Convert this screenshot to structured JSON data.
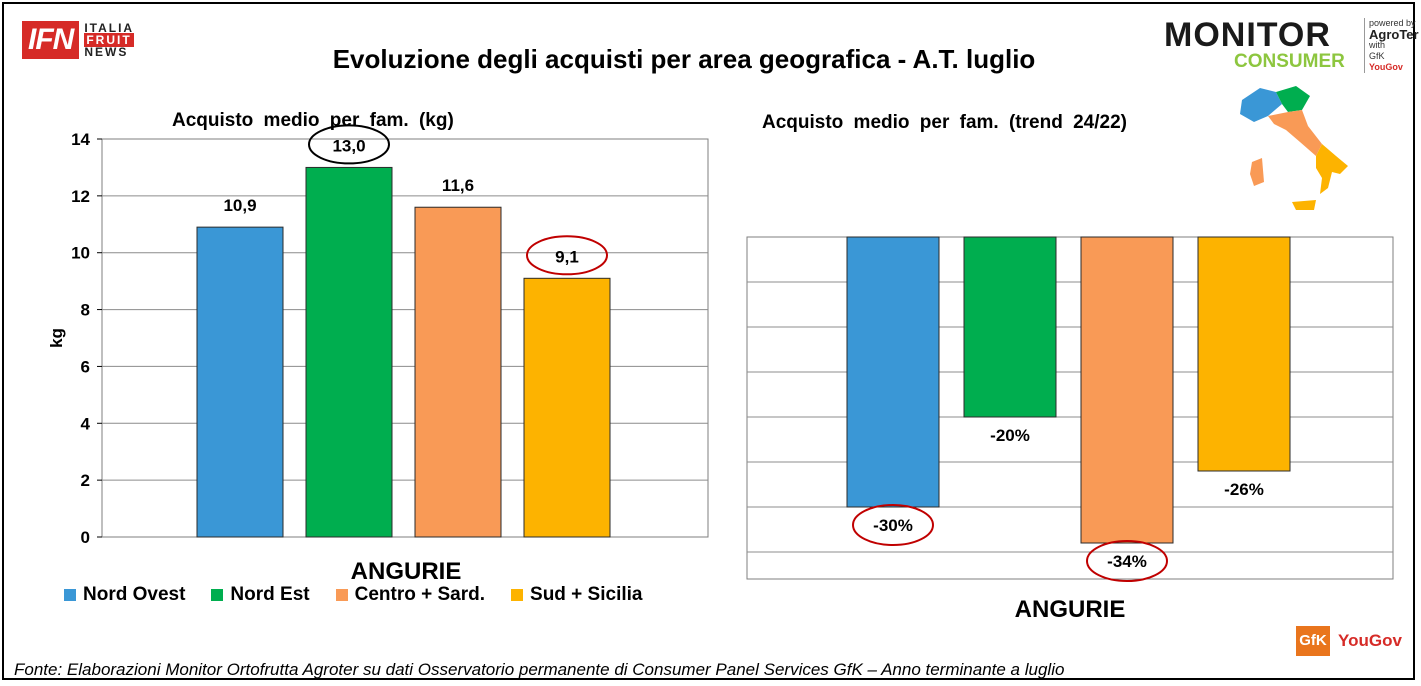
{
  "header": {
    "title": "Evoluzione degli acquisti per area geografica - A.T. luglio",
    "ifn_logo": {
      "main": "IFN",
      "line1": "ITALIA",
      "line2": "FRUIT",
      "line3": "NEWS"
    },
    "monitor_logo": {
      "line1": "MONITOR",
      "line2": "CONSUMER"
    },
    "powered": {
      "line1": "powered by",
      "line2": "AgroTer",
      "line3": "with",
      "gfk": "GfK",
      "yougov": "YouGov"
    }
  },
  "colors": {
    "nord_ovest": "#3a97d6",
    "nord_est": "#00ae4f",
    "centro_sard": "#f99a56",
    "sud_sicilia": "#fdb300",
    "highlight_black": "#000000",
    "highlight_red": "#c00000"
  },
  "chart_data": [
    {
      "type": "bar",
      "title": "Acquisto medio per fam. (kg)",
      "xlabel": "ANGURIE",
      "ylabel": "kg",
      "ylim": [
        0,
        14
      ],
      "yticks": [
        "0",
        "2",
        "4",
        "6",
        "8",
        "10",
        "12",
        "14"
      ],
      "grid": true,
      "categories": [
        "Nord Ovest",
        "Nord Est",
        "Centro + Sard.",
        "Sud + Sicilia"
      ],
      "values": [
        10.9,
        13.0,
        11.6,
        9.1
      ],
      "labels": [
        "10,9",
        "13,0",
        "11,6",
        "9,1"
      ],
      "circled": [
        "none",
        "black",
        "none",
        "red"
      ],
      "legend": "bottom"
    },
    {
      "type": "bar",
      "title": "Acquisto medio per fam. (trend 24/22)",
      "xlabel": "ANGURIE",
      "ylim": [
        -38,
        0
      ],
      "grid": true,
      "categories": [
        "Nord Ovest",
        "Nord Est",
        "Centro + Sard.",
        "Sud + Sicilia"
      ],
      "values": [
        -30,
        -20,
        -34,
        -26
      ],
      "labels": [
        "-30%",
        "-20%",
        "-34%",
        "-26%"
      ],
      "circled": [
        "red",
        "none",
        "red",
        "none"
      ]
    }
  ],
  "legend": {
    "items": [
      {
        "label": "Nord Ovest",
        "color": "#3a97d6"
      },
      {
        "label": "Nord Est",
        "color": "#00ae4f"
      },
      {
        "label": "Centro + Sard.",
        "color": "#f99a56"
      },
      {
        "label": "Sud + Sicilia",
        "color": "#fdb300"
      }
    ]
  },
  "footer": {
    "source": "Fonte: Elaborazioni Monitor Ortofrutta Agroter su dati Osservatorio permanente di Consumer Panel Services GfK – Anno terminante a luglio",
    "gfk": "GfK",
    "yougov": "YouGov"
  }
}
